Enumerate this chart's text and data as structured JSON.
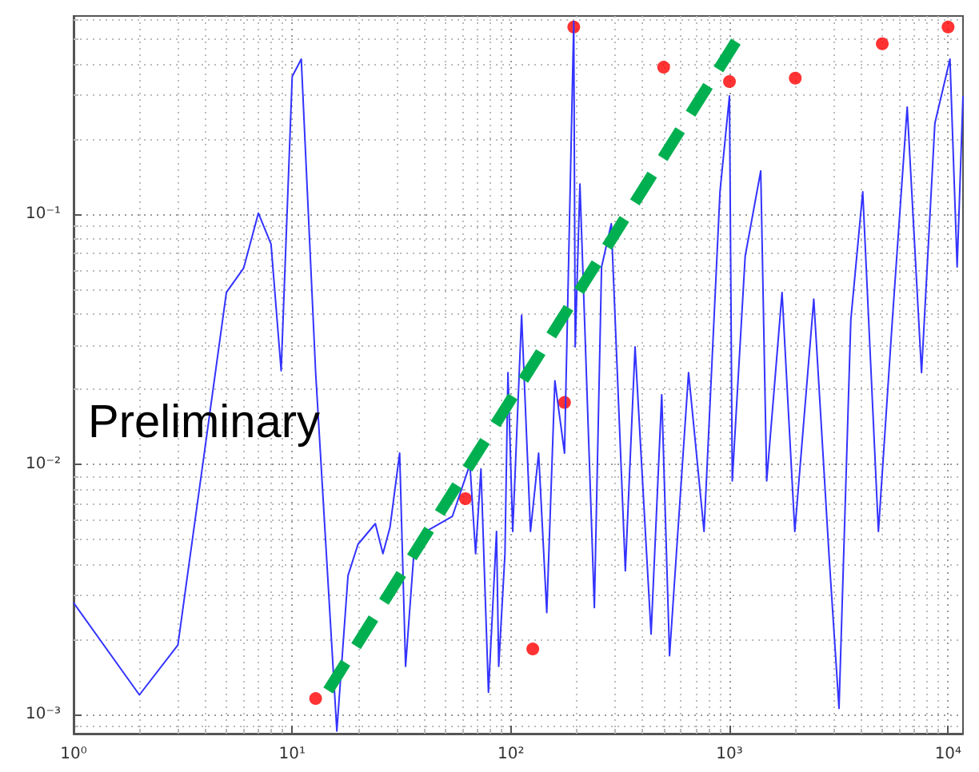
{
  "chart_data": {
    "type": "line",
    "log": "xy",
    "grid": true,
    "xlim": [
      1,
      11700
    ],
    "ylim": [
      0.00084,
      0.62
    ],
    "xticks": [
      {
        "value": 1,
        "label": "10⁰"
      },
      {
        "value": 10,
        "label": "10¹"
      },
      {
        "value": 100,
        "label": "10²"
      },
      {
        "value": 1000,
        "label": "10³"
      },
      {
        "value": 10000,
        "label": "10⁴"
      }
    ],
    "yticks": [
      {
        "value": 0.001,
        "label": "10⁻³"
      },
      {
        "value": 0.01,
        "label": "10⁻²"
      },
      {
        "value": 0.1,
        "label": "10⁻¹"
      }
    ],
    "annotations": [
      "Preliminary"
    ],
    "series": [
      {
        "type": "line",
        "color": "#3333ff",
        "marker": "none",
        "x": [
          1,
          2,
          3,
          5,
          6,
          7,
          8,
          8.9,
          10,
          11,
          12.8,
          16,
          18,
          20,
          24,
          26,
          28,
          31,
          33,
          36,
          41,
          54,
          65,
          69,
          73,
          79,
          86,
          88,
          94,
          97,
          102,
          112,
          123,
          134,
          146,
          159,
          176,
          194,
          197,
          207,
          241,
          260,
          288,
          334,
          370,
          438,
          490,
          532,
          650,
          765,
          905,
          1000,
          1030,
          1180,
          1390,
          1480,
          1740,
          1990,
          2430,
          2860,
          3170,
          3590,
          4070,
          4800,
          5560,
          6500,
          7560,
          8700,
          10200,
          11000,
          11700
        ],
        "values": [
          0.0028,
          0.0012,
          0.0019,
          0.0487,
          0.061,
          0.101,
          0.076,
          0.0237,
          0.355,
          0.417,
          0.0233,
          0.00086,
          0.0036,
          0.0048,
          0.0058,
          0.0044,
          0.0056,
          0.0111,
          0.00156,
          0.0044,
          0.0054,
          0.0062,
          0.01,
          0.0044,
          0.0096,
          0.00123,
          0.0054,
          0.00156,
          0.0044,
          0.0233,
          0.0054,
          0.0395,
          0.0054,
          0.0111,
          0.00256,
          0.0216,
          0.0111,
          0.59,
          0.0295,
          0.132,
          0.00268,
          0.0616,
          0.0916,
          0.00376,
          0.0295,
          0.0021,
          0.019,
          0.00172,
          0.0233,
          0.0054,
          0.123,
          0.297,
          0.0086,
          0.068,
          0.149,
          0.0086,
          0.0487,
          0.0054,
          0.0458,
          0.0042,
          0.00106,
          0.0378,
          0.123,
          0.0054,
          0.0378,
          0.268,
          0.0233,
          0.231,
          0.417,
          0.0616,
          0.297
        ]
      },
      {
        "type": "scatter",
        "color": "#ff0000",
        "marker": "circle",
        "x": [
          12.8,
          62,
          126,
          176,
          194,
          500,
          1000,
          2000,
          5000,
          10000
        ],
        "values": [
          0.00116,
          0.0073,
          0.00183,
          0.0177,
          0.56,
          0.387,
          0.339,
          0.35,
          0.48,
          0.56
        ]
      },
      {
        "type": "line",
        "color": "#00b050",
        "marker": "none",
        "line_style": "dashed",
        "x": [
          14.6,
          1070
        ],
        "values": [
          0.00125,
          0.49
        ]
      }
    ]
  }
}
